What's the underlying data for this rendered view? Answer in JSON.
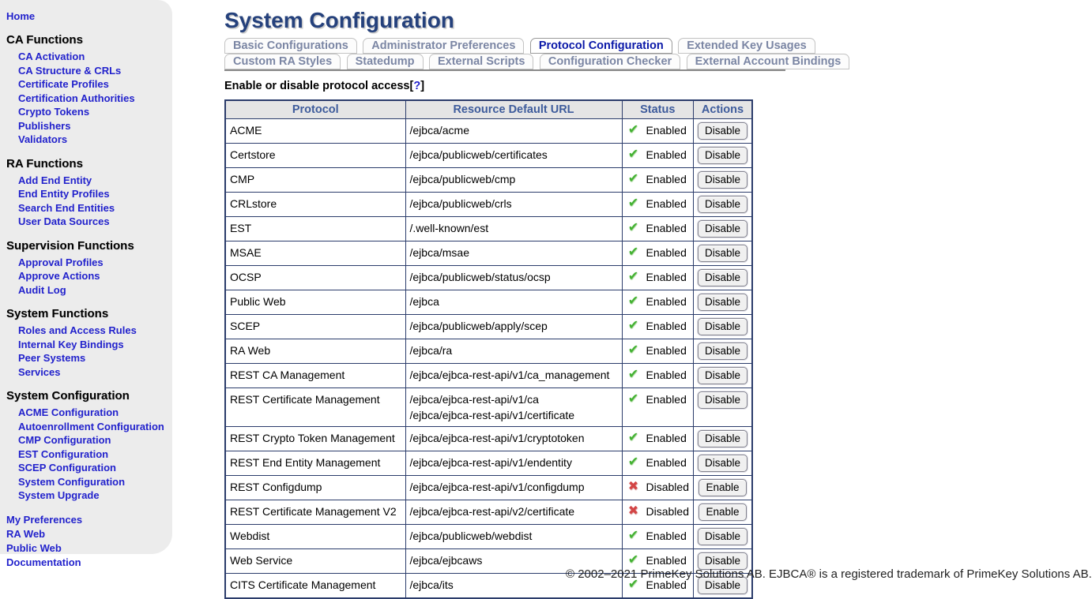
{
  "sidebar": {
    "home": "Home",
    "sections": [
      {
        "title": "CA Functions",
        "items": [
          "CA Activation",
          "CA Structure & CRLs",
          "Certificate Profiles",
          "Certification Authorities",
          "Crypto Tokens",
          "Publishers",
          "Validators"
        ]
      },
      {
        "title": "RA Functions",
        "items": [
          "Add End Entity",
          "End Entity Profiles",
          "Search End Entities",
          "User Data Sources"
        ]
      },
      {
        "title": "Supervision Functions",
        "items": [
          "Approval Profiles",
          "Approve Actions",
          "Audit Log"
        ]
      },
      {
        "title": "System Functions",
        "items": [
          "Roles and Access Rules",
          "Internal Key Bindings",
          "Peer Systems",
          "Services"
        ]
      },
      {
        "title": "System Configuration",
        "items": [
          "ACME Configuration",
          "Autoenrollment Configuration",
          "CMP Configuration",
          "EST Configuration",
          "SCEP Configuration",
          "System Configuration",
          "System Upgrade"
        ]
      }
    ],
    "footer_links": [
      "My Preferences",
      "RA Web",
      "Public Web",
      "Documentation"
    ]
  },
  "header": {
    "title": "System Configuration"
  },
  "tabs": {
    "rows": [
      [
        {
          "label": "Basic Configurations",
          "active": false
        },
        {
          "label": "Administrator Preferences",
          "active": false
        },
        {
          "label": "Protocol Configuration",
          "active": true
        },
        {
          "label": "Extended Key Usages",
          "active": false
        }
      ],
      [
        {
          "label": "Custom RA Styles",
          "active": false
        },
        {
          "label": "Statedump",
          "active": false
        },
        {
          "label": "External Scripts",
          "active": false
        },
        {
          "label": "Configuration Checker",
          "active": false
        },
        {
          "label": "External Account Bindings",
          "active": false
        }
      ]
    ]
  },
  "section": {
    "heading": "Enable or disable protocol access",
    "help": "?"
  },
  "table": {
    "headers": [
      "Protocol",
      "Resource Default URL",
      "Status",
      "Actions"
    ],
    "status_enabled_label": "Enabled",
    "status_disabled_label": "Disabled",
    "action_disable_label": "Disable",
    "action_enable_label": "Enable",
    "enabled_icon": "✔",
    "disabled_icon": "✖",
    "rows": [
      {
        "protocol": "ACME",
        "urls": [
          "/ejbca/acme"
        ],
        "enabled": true
      },
      {
        "protocol": "Certstore",
        "urls": [
          "/ejbca/publicweb/certificates"
        ],
        "enabled": true
      },
      {
        "protocol": "CMP",
        "urls": [
          "/ejbca/publicweb/cmp"
        ],
        "enabled": true
      },
      {
        "protocol": "CRLstore",
        "urls": [
          "/ejbca/publicweb/crls"
        ],
        "enabled": true
      },
      {
        "protocol": "EST",
        "urls": [
          "/.well-known/est"
        ],
        "enabled": true
      },
      {
        "protocol": "MSAE",
        "urls": [
          "/ejbca/msae"
        ],
        "enabled": true
      },
      {
        "protocol": "OCSP",
        "urls": [
          "/ejbca/publicweb/status/ocsp"
        ],
        "enabled": true
      },
      {
        "protocol": "Public Web",
        "urls": [
          "/ejbca"
        ],
        "enabled": true
      },
      {
        "protocol": "SCEP",
        "urls": [
          "/ejbca/publicweb/apply/scep"
        ],
        "enabled": true
      },
      {
        "protocol": "RA Web",
        "urls": [
          "/ejbca/ra"
        ],
        "enabled": true
      },
      {
        "protocol": "REST CA Management",
        "urls": [
          "/ejbca/ejbca-rest-api/v1/ca_management"
        ],
        "enabled": true
      },
      {
        "protocol": "REST Certificate Management",
        "urls": [
          "/ejbca/ejbca-rest-api/v1/ca",
          "/ejbca/ejbca-rest-api/v1/certificate"
        ],
        "enabled": true
      },
      {
        "protocol": "REST Crypto Token Management",
        "urls": [
          "/ejbca/ejbca-rest-api/v1/cryptotoken"
        ],
        "enabled": true
      },
      {
        "protocol": "REST End Entity Management",
        "urls": [
          "/ejbca/ejbca-rest-api/v1/endentity"
        ],
        "enabled": true
      },
      {
        "protocol": "REST Configdump",
        "urls": [
          "/ejbca/ejbca-rest-api/v1/configdump"
        ],
        "enabled": false
      },
      {
        "protocol": "REST Certificate Management V2",
        "urls": [
          "/ejbca/ejbca-rest-api/v2/certificate"
        ],
        "enabled": false
      },
      {
        "protocol": "Webdist",
        "urls": [
          "/ejbca/publicweb/webdist"
        ],
        "enabled": true
      },
      {
        "protocol": "Web Service",
        "urls": [
          "/ejbca/ejbcaws"
        ],
        "enabled": true
      },
      {
        "protocol": "CITS Certificate Management",
        "urls": [
          "/ejbca/its"
        ],
        "enabled": true
      }
    ]
  },
  "footer": {
    "copyright": "© 2002–2021 PrimeKey Solutions AB. EJBCA® is a registered trademark of PrimeKey Solutions AB."
  },
  "colors": {
    "sidebar_bg": "#ececec",
    "link_blue": "#2222cc",
    "title_blue": "#25417c",
    "active_tab_blue": "#0a18a8",
    "inactive_tab_text": "#7b86a4",
    "table_border": "#2b3c6b",
    "table_header_text": "#3e5c9c",
    "table_header_bg": "#e5e5e5",
    "status_green": "#44b233",
    "status_red": "#d34545"
  }
}
